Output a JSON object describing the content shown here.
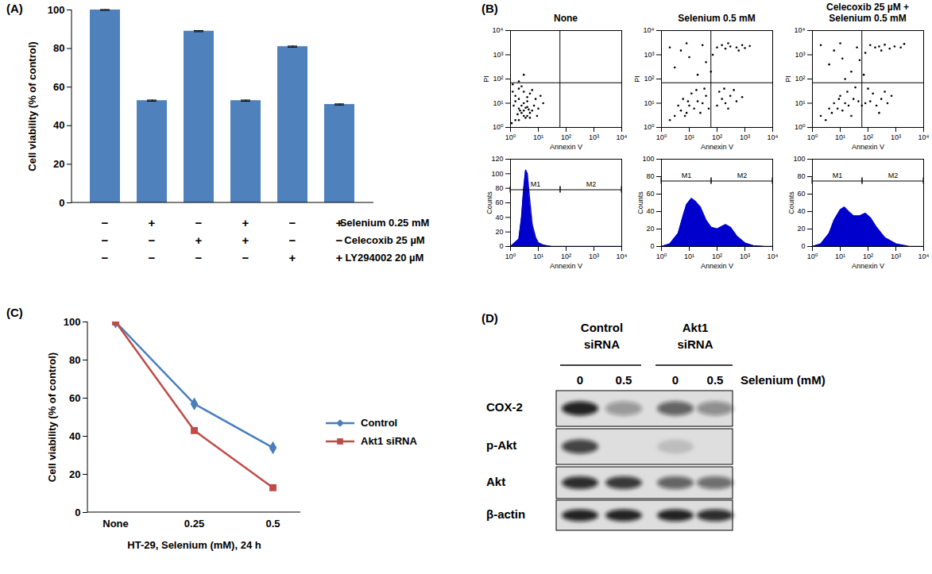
{
  "chart_data": [
    {
      "panel": "(A)",
      "type": "bar",
      "categories": [
        null,
        null,
        null,
        null,
        null,
        null
      ],
      "values": [
        100,
        53,
        89,
        53,
        81,
        51
      ],
      "errors": [
        0.2,
        0.3,
        0.3,
        0.3,
        0.3,
        0.3
      ],
      "color": "#4f81bd",
      "y_label": "Cell viability (% of control)",
      "ylim": [
        0,
        100
      ],
      "yticks": [
        0,
        20,
        40,
        60,
        80,
        100
      ],
      "grid": false,
      "treatments": [
        {
          "label": "Selenium 0.25 mM",
          "marks": [
            "−",
            "+",
            "−",
            "+",
            "−",
            "+"
          ]
        },
        {
          "label": "Celecoxib 25 µM",
          "marks": [
            "−",
            "−",
            "+",
            "+",
            "−",
            "−"
          ]
        },
        {
          "label": "LY294002 20 µM",
          "marks": [
            "−",
            "−",
            "−",
            "−",
            "+",
            "+"
          ]
        }
      ]
    },
    {
      "panel": "(B)",
      "type": "scatter",
      "title": "None",
      "x_label": "Annexin V",
      "y_label": "PI",
      "log": true,
      "color": "#000000",
      "xlim": [
        1,
        10000
      ],
      "ylim": [
        1,
        10000
      ],
      "xticks": [
        {
          "value": 1,
          "label": "10⁰"
        },
        {
          "value": 10,
          "label": "10¹"
        },
        {
          "value": 100,
          "label": "10²"
        },
        {
          "value": 1000,
          "label": "10³"
        },
        {
          "value": 10000,
          "label": "10⁴"
        }
      ],
      "yticks": [
        {
          "value": 1,
          "label": "10⁰"
        },
        {
          "value": 10,
          "label": "10¹"
        },
        {
          "value": 100,
          "label": "10²"
        },
        {
          "value": 1000,
          "label": "10³"
        },
        {
          "value": 10000,
          "label": "10⁴"
        }
      ],
      "quadrants": {
        "x": 60,
        "y": 70
      },
      "points": [
        [
          2,
          2
        ],
        [
          3,
          3
        ],
        [
          2.5,
          4
        ],
        [
          4,
          3
        ],
        [
          3,
          5
        ],
        [
          5,
          4
        ],
        [
          2,
          6
        ],
        [
          3.5,
          2.5
        ],
        [
          1.5,
          2
        ],
        [
          6,
          5
        ],
        [
          4,
          7
        ],
        [
          2.5,
          8
        ],
        [
          1.8,
          3.5
        ],
        [
          5,
          2.5
        ],
        [
          3,
          10
        ],
        [
          2,
          15
        ],
        [
          4,
          12
        ],
        [
          1.5,
          20
        ],
        [
          3,
          30
        ],
        [
          2,
          40
        ],
        [
          5,
          25
        ],
        [
          1.2,
          60
        ],
        [
          2.5,
          50
        ],
        [
          7,
          8
        ],
        [
          8,
          15
        ],
        [
          1.5,
          12
        ],
        [
          6,
          35
        ],
        [
          10,
          6
        ],
        [
          3.5,
          6.5
        ],
        [
          2.2,
          5
        ],
        [
          4.5,
          5.5
        ],
        [
          1.3,
          8
        ],
        [
          1.2,
          30
        ],
        [
          2,
          80
        ],
        [
          4,
          18
        ],
        [
          9,
          3
        ],
        [
          1.1,
          1.5
        ],
        [
          12,
          20
        ],
        [
          15,
          10
        ],
        [
          3,
          150
        ]
      ]
    },
    {
      "type": "scatter",
      "title": "Selenium 0.5 mM",
      "x_label": "Annexin V",
      "y_label": "PI",
      "log": true,
      "color": "#000000",
      "xlim": [
        1,
        10000
      ],
      "ylim": [
        1,
        10000
      ],
      "xticks": [
        {
          "value": 1,
          "label": "10⁰"
        },
        {
          "value": 10,
          "label": "10¹"
        },
        {
          "value": 100,
          "label": "10²"
        },
        {
          "value": 1000,
          "label": "10³"
        },
        {
          "value": 10000,
          "label": "10⁴"
        }
      ],
      "yticks": [
        {
          "value": 1,
          "label": "10⁰"
        },
        {
          "value": 10,
          "label": "10¹"
        },
        {
          "value": 100,
          "label": "10²"
        },
        {
          "value": 1000,
          "label": "10³"
        },
        {
          "value": 10000,
          "label": "10⁴"
        }
      ],
      "quadrants": {
        "x": 60,
        "y": 70
      },
      "points": [
        [
          3,
          3
        ],
        [
          5,
          5
        ],
        [
          8,
          4
        ],
        [
          10,
          8
        ],
        [
          15,
          6
        ],
        [
          20,
          12
        ],
        [
          30,
          10
        ],
        [
          40,
          20
        ],
        [
          12,
          25
        ],
        [
          6,
          15
        ],
        [
          4,
          8
        ],
        [
          25,
          4
        ],
        [
          50,
          6
        ],
        [
          2,
          2
        ],
        [
          18,
          35
        ],
        [
          35,
          40
        ],
        [
          9,
          12
        ],
        [
          7,
          3
        ],
        [
          100,
          8
        ],
        [
          150,
          15
        ],
        [
          200,
          10
        ],
        [
          300,
          20
        ],
        [
          500,
          12
        ],
        [
          120,
          30
        ],
        [
          250,
          6
        ],
        [
          400,
          35
        ],
        [
          800,
          18
        ],
        [
          180,
          40
        ],
        [
          100,
          2000
        ],
        [
          150,
          2500
        ],
        [
          200,
          1800
        ],
        [
          300,
          2200
        ],
        [
          500,
          2000
        ],
        [
          800,
          2500
        ],
        [
          1000,
          1900
        ],
        [
          1500,
          2300
        ],
        [
          250,
          3000
        ],
        [
          600,
          1500
        ],
        [
          3,
          300
        ],
        [
          5,
          1500
        ],
        [
          10,
          800
        ],
        [
          2,
          2000
        ],
        [
          20,
          150
        ],
        [
          8,
          3000
        ],
        [
          40,
          500
        ],
        [
          60,
          200
        ],
        [
          30,
          2500
        ],
        [
          70,
          1000
        ]
      ]
    },
    {
      "type": "scatter",
      "title": "Celecoxib 25 µM + Selenium 0.5 mM",
      "x_label": "Annexin V",
      "y_label": "PI",
      "log": true,
      "color": "#000000",
      "xlim": [
        1,
        10000
      ],
      "ylim": [
        1,
        10000
      ],
      "xticks": [
        {
          "value": 1,
          "label": "10⁰"
        },
        {
          "value": 10,
          "label": "10¹"
        },
        {
          "value": 100,
          "label": "10²"
        },
        {
          "value": 1000,
          "label": "10³"
        },
        {
          "value": 10000,
          "label": "10⁴"
        }
      ],
      "yticks": [
        {
          "value": 1,
          "label": "10⁰"
        },
        {
          "value": 10,
          "label": "10¹"
        },
        {
          "value": 100,
          "label": "10²"
        },
        {
          "value": 1000,
          "label": "10³"
        },
        {
          "value": 10000,
          "label": "10⁴"
        }
      ],
      "quadrants": {
        "x": 60,
        "y": 70
      },
      "points": [
        [
          3,
          2
        ],
        [
          5,
          4
        ],
        [
          8,
          6
        ],
        [
          12,
          5
        ],
        [
          15,
          10
        ],
        [
          20,
          8
        ],
        [
          30,
          15
        ],
        [
          45,
          12
        ],
        [
          10,
          20
        ],
        [
          6,
          10
        ],
        [
          4,
          6
        ],
        [
          25,
          3
        ],
        [
          60,
          8
        ],
        [
          2,
          3
        ],
        [
          18,
          30
        ],
        [
          35,
          45
        ],
        [
          9,
          15
        ],
        [
          80,
          10
        ],
        [
          120,
          12
        ],
        [
          200,
          8
        ],
        [
          300,
          15
        ],
        [
          500,
          10
        ],
        [
          150,
          25
        ],
        [
          250,
          4
        ],
        [
          400,
          30
        ],
        [
          700,
          20
        ],
        [
          100,
          40
        ],
        [
          120,
          2500
        ],
        [
          180,
          2000
        ],
        [
          250,
          2200
        ],
        [
          400,
          2600
        ],
        [
          600,
          1800
        ],
        [
          900,
          2200
        ],
        [
          1500,
          2000
        ],
        [
          300,
          1500
        ],
        [
          2000,
          2800
        ],
        [
          4,
          400
        ],
        [
          6,
          1500
        ],
        [
          12,
          700
        ],
        [
          2,
          2500
        ],
        [
          25,
          200
        ],
        [
          10,
          3000
        ],
        [
          50,
          600
        ],
        [
          70,
          150
        ],
        [
          40,
          2000
        ],
        [
          80,
          1200
        ],
        [
          15,
          100
        ]
      ]
    },
    {
      "type": "area",
      "x_label": "Annexin V",
      "y_label": "Counts",
      "log": "x",
      "color": "#0000cc",
      "xlim": [
        1,
        10000
      ],
      "ylim": [
        0,
        120
      ],
      "xticks": [
        {
          "value": 1,
          "label": "10⁰"
        },
        {
          "value": 10,
          "label": "10¹"
        },
        {
          "value": 100,
          "label": "10²"
        },
        {
          "value": 1000,
          "label": "10³"
        },
        {
          "value": 10000,
          "label": "10⁴"
        }
      ],
      "yticks": [
        0,
        20,
        40,
        60,
        80,
        100,
        120
      ],
      "x": [
        1,
        2,
        2.5,
        3,
        3.5,
        4,
        5,
        6,
        8,
        10,
        15,
        20,
        30,
        50,
        100,
        10000
      ],
      "values": [
        0,
        10,
        40,
        80,
        105,
        100,
        60,
        30,
        12,
        5,
        2,
        1,
        0,
        0,
        0,
        0
      ],
      "gates": [
        {
          "label": "M1",
          "range": [
            1,
            63
          ],
          "level": 78
        },
        {
          "label": "M2",
          "range": [
            63,
            10000
          ],
          "level": 78
        }
      ]
    },
    {
      "type": "area",
      "x_label": "Annexin V",
      "y_label": "Counts",
      "log": "x",
      "color": "#0000cc",
      "xlim": [
        1,
        10000
      ],
      "ylim": [
        0,
        100
      ],
      "xticks": [
        {
          "value": 1,
          "label": "10⁰"
        },
        {
          "value": 10,
          "label": "10¹"
        },
        {
          "value": 100,
          "label": "10²"
        },
        {
          "value": 1000,
          "label": "10³"
        },
        {
          "value": 10000,
          "label": "10⁴"
        }
      ],
      "yticks": [
        0,
        20,
        40,
        60,
        80,
        100
      ],
      "x": [
        1,
        2,
        4,
        6,
        8,
        12,
        16,
        25,
        40,
        60,
        100,
        200,
        300,
        500,
        1000,
        2000,
        5000,
        10000
      ],
      "values": [
        0,
        3,
        15,
        35,
        48,
        55,
        52,
        45,
        30,
        22,
        20,
        25,
        22,
        12,
        4,
        1,
        0,
        0
      ],
      "gates": [
        {
          "label": "M1",
          "range": [
            1,
            63
          ],
          "level": 75
        },
        {
          "label": "M2",
          "range": [
            63,
            10000
          ],
          "level": 75
        }
      ]
    },
    {
      "type": "area",
      "x_label": "Annexin V",
      "y_label": "Counts",
      "log": "x",
      "color": "#0000cc",
      "xlim": [
        1,
        10000
      ],
      "ylim": [
        0,
        100
      ],
      "xticks": [
        {
          "value": 1,
          "label": "10⁰"
        },
        {
          "value": 10,
          "label": "10¹"
        },
        {
          "value": 100,
          "label": "10²"
        },
        {
          "value": 1000,
          "label": "10³"
        },
        {
          "value": 10000,
          "label": "10⁴"
        }
      ],
      "yticks": [
        0,
        20,
        40,
        60,
        80,
        100
      ],
      "x": [
        1,
        2,
        4,
        6,
        10,
        14,
        20,
        30,
        50,
        80,
        120,
        200,
        400,
        1000,
        3000,
        10000
      ],
      "values": [
        0,
        3,
        15,
        30,
        42,
        45,
        40,
        35,
        35,
        38,
        33,
        22,
        10,
        3,
        0,
        0
      ],
      "gates": [
        {
          "label": "M1",
          "range": [
            1,
            63
          ],
          "level": 75
        },
        {
          "label": "M2",
          "range": [
            63,
            10000
          ],
          "level": 75
        }
      ]
    },
    {
      "panel": "(C)",
      "type": "line",
      "categories": [
        "None",
        "0.25",
        "0.5"
      ],
      "x_label": "HT-29, Selenium (mM), 24 h",
      "y_label": "Cell viability (% of control)",
      "ylim": [
        0,
        100
      ],
      "yticks": [
        0,
        20,
        40,
        60,
        80,
        100
      ],
      "grid": false,
      "legend": "right",
      "series": [
        {
          "name": "Control",
          "color": "#4a7ebb",
          "marker": "diamond",
          "values": [
            100,
            57,
            34
          ]
        },
        {
          "name": "Akt1 siRNA",
          "color": "#be4b48",
          "marker": "square",
          "values": [
            100,
            43,
            13
          ]
        }
      ]
    },
    {
      "panel": "(D)",
      "type": "blot",
      "groups": [
        {
          "label": "Control siRNA",
          "lanes": [
            0,
            1
          ]
        },
        {
          "label": "Akt1 siRNA",
          "lanes": [
            2,
            3
          ]
        }
      ],
      "lanes": [
        "0",
        "0.5",
        "0",
        "0.5"
      ],
      "lane_title": "Selenium (mM)",
      "rows": [
        {
          "label": "COX-2",
          "intensities": [
            0.9,
            0.35,
            0.6,
            0.4
          ]
        },
        {
          "label": "p-Akt",
          "intensities": [
            0.75,
            0,
            0.15,
            0
          ]
        },
        {
          "label": "Akt",
          "intensities": [
            0.85,
            0.8,
            0.6,
            0.55
          ]
        },
        {
          "label": "β-actin",
          "intensities": [
            0.9,
            0.9,
            0.9,
            0.85
          ]
        }
      ]
    }
  ]
}
